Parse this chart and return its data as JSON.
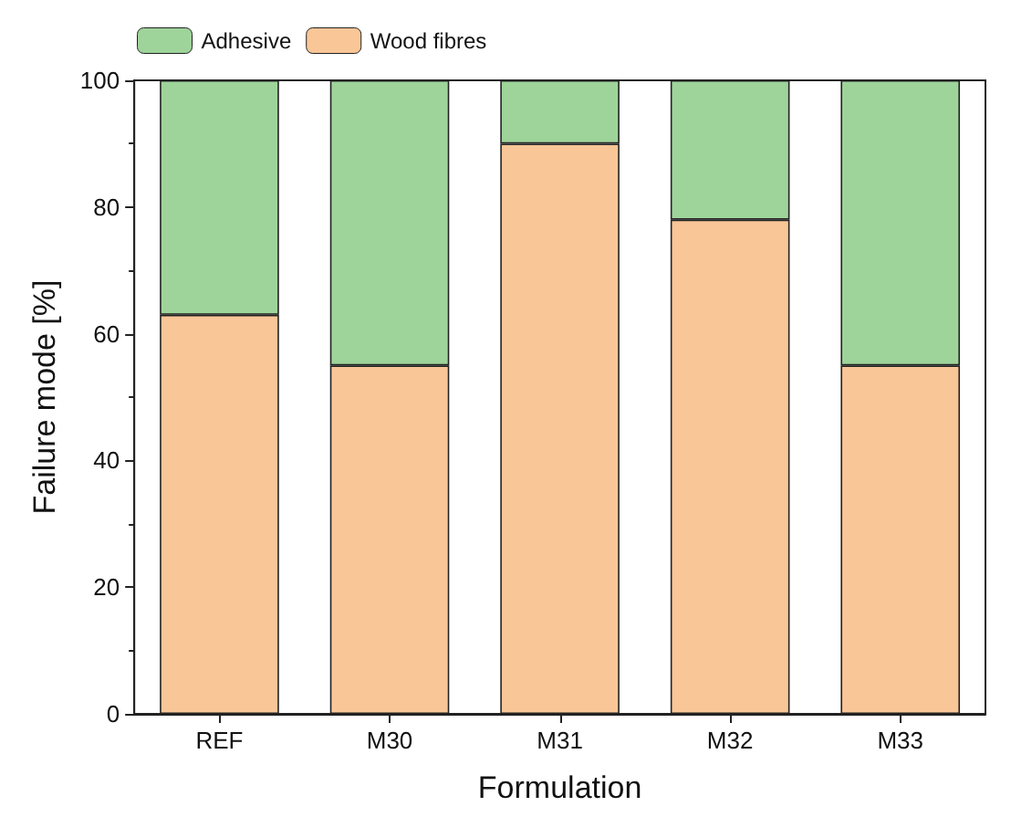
{
  "chart_data": {
    "type": "bar",
    "stacked": true,
    "xlabel": "Formulation",
    "ylabel": "Failure mode [%]",
    "categories": [
      "REF",
      "M30",
      "M31",
      "M32",
      "M33"
    ],
    "series": [
      {
        "name": "Wood fibres",
        "color": "#f9c697",
        "values": [
          63,
          55,
          90,
          78,
          55
        ]
      },
      {
        "name": "Adhesive",
        "color": "#9ed49a",
        "values": [
          37,
          45,
          10,
          22,
          45
        ]
      }
    ],
    "ylim": [
      0,
      100
    ],
    "yticks": [
      0,
      20,
      40,
      60,
      80,
      100
    ],
    "grid": false,
    "legend": "top left"
  }
}
